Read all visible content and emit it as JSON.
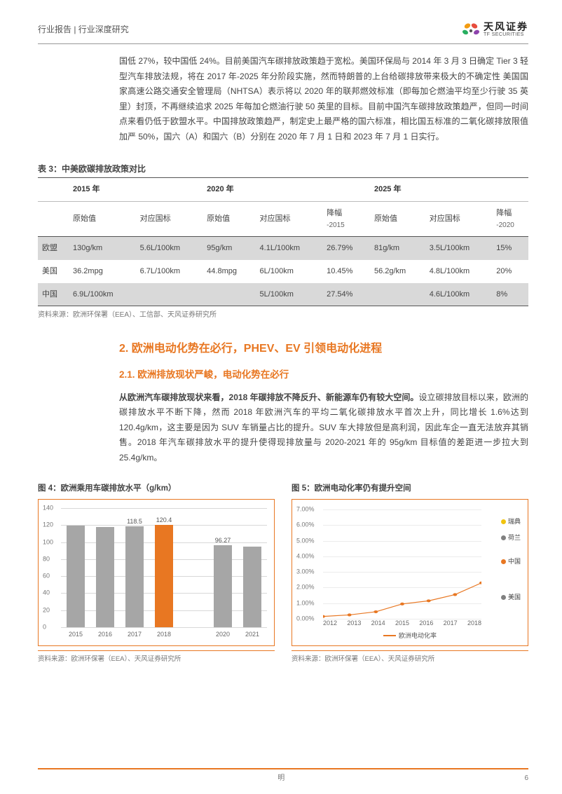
{
  "header": {
    "breadcrumb": "行业报告 | 行业深度研究",
    "logo_cn": "天风证券",
    "logo_en": "TF SECURITIES",
    "logo_colors": [
      "#f39c12",
      "#e74c3c",
      "#8e44ad",
      "#27ae60"
    ]
  },
  "intro_paragraph": "国低 27%，较中国低 24%。目前美国汽车碳排放政策趋于宽松。美国环保局与 2014 年 3 月 3 日确定 Tier 3 轻型汽车排放法规，将在 2017 年-2025 年分阶段实施，然而特朗普的上台给碳排放带来极大的不确定性 美国国家高速公路交通安全管理局（NHTSA）表示将以 2020 年的联邦燃效标准（即每加仑燃油平均至少行驶 35 英里）封顶，不再继续追求 2025 年每加仑燃油行驶 50 英里的目标。目前中国汽车碳排放政策趋严，但同一时间点来看仍低于欧盟水平。中国排放政策趋严，制定史上最严格的国六标准，相比国五标准的二氧化碳排放限值加严 50%，国六（A）和国六（B）分别在 2020 年 7 月 1 日和 2023 年 7 月 1 日实行。",
  "table": {
    "caption": "表 3：中美欧碳排放政策对比",
    "year_headers": [
      "2015 年",
      "2020 年",
      "2025 年"
    ],
    "sub_headers": [
      "原始值",
      "对应国标",
      "原始值",
      "对应国标",
      "降幅",
      "原始值",
      "对应国标",
      "降幅"
    ],
    "sub_notes": [
      "",
      "",
      "",
      "",
      "-2015",
      "",
      "",
      "-2020"
    ],
    "rows": [
      {
        "label": "欧盟",
        "cells": [
          "130g/km",
          "5.6L/100km",
          "95g/km",
          "4.1L/100km",
          "26.79%",
          "81g/km",
          "3.5L/100km",
          "15%"
        ],
        "shade": true
      },
      {
        "label": "美国",
        "cells": [
          "36.2mpg",
          "6.7L/100km",
          "44.8mpg",
          "6L/100km",
          "10.45%",
          "56.2g/km",
          "4.8L/100km",
          "20%"
        ],
        "shade": false
      },
      {
        "label": "中国",
        "cells": [
          "6.9L/100km",
          "",
          "",
          "5L/100km",
          "27.54%",
          "",
          "4.6L/100km",
          "8%"
        ],
        "shade": true
      }
    ],
    "source": "资料来源：欧洲环保署（EEA）、工信部、天风证券研究所"
  },
  "section": {
    "h2": "2. 欧洲电动化势在必行，PHEV、EV 引领电动化进程",
    "h3": "2.1. 欧洲排放现状严峻，电动化势在必行",
    "para_lead": "从欧洲汽车碳排放现状来看，2018 年碳排放不降反升、新能源车仍有较大空间。",
    "para_rest": "设立碳排放目标以来，欧洲的碳排放水平不断下降，然而 2018 年欧洲汽车的平均二氧化碳排放水平首次上升，同比增长 1.6%达到 120.4g/km，这主要是因为 SUV 车销量占比的提升。SUV 车大排放但是高利润，因此车企一直无法放弃其销售。2018 年汽车碳排放水平的提升使得现排放量与 2020-2021 年的 95g/km 目标值的差距进一步拉大到 25.4g/km。"
  },
  "chart4": {
    "title": "图 4：欧洲乘用车碳排放水平（g/km）",
    "type": "bar",
    "ylim": [
      0,
      140
    ],
    "ytick_step": 20,
    "categories": [
      "2015",
      "2016",
      "2017",
      "2018",
      "",
      "2020",
      "2021"
    ],
    "values": [
      119.5,
      118.0,
      118.5,
      120.4,
      null,
      96.27,
      95.0
    ],
    "show_labels": [
      false,
      false,
      true,
      true,
      false,
      true,
      false
    ],
    "bar_color": "#a6a6a6",
    "highlight_color": "#e87722",
    "highlight_index": 3,
    "grid_color": "#d8d8d8",
    "source": "资料来源：欧洲环保署（EEA）、天风证券研究所"
  },
  "chart5": {
    "title": "图 5：欧洲电动化率仍有提升空间",
    "type": "line",
    "ylim": [
      0,
      7
    ],
    "ytick_step": 1,
    "yformat": "percent",
    "categories": [
      "2012",
      "2013",
      "2014",
      "2015",
      "2016",
      "2017",
      "2018"
    ],
    "series": {
      "name": "欧洲电动化率",
      "color": "#e87722",
      "values": [
        0.15,
        0.25,
        0.45,
        0.95,
        1.15,
        1.55,
        2.3
      ]
    },
    "side_labels": [
      {
        "text": "瑞典",
        "color": "#f1c40f",
        "top_pct": 8
      },
      {
        "text": "荷兰",
        "color": "#808080",
        "top_pct": 20
      },
      {
        "text": "中国",
        "color": "#e87722",
        "top_pct": 37
      },
      {
        "text": "美国",
        "color": "#808080",
        "top_pct": 63
      }
    ],
    "grid_color": "#ececec",
    "source": "资料来源：欧洲环保署（EEA）、天风证券研究所"
  },
  "footer": {
    "center": "明",
    "page": "6"
  }
}
